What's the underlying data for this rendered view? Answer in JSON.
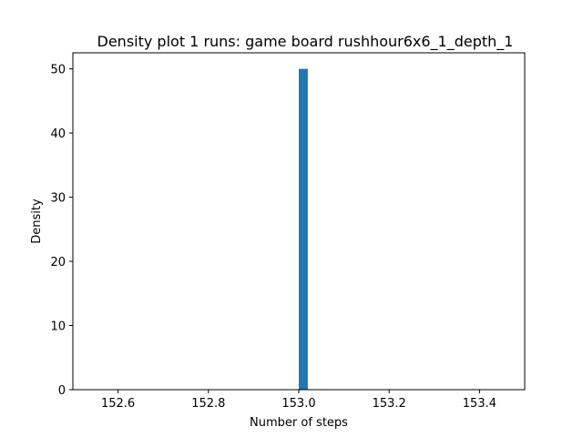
{
  "chart_data": {
    "type": "bar",
    "title": "Density plot 1 runs: game board rushhour6x6_1_depth_1",
    "xlabel": "Number of steps",
    "ylabel": "Density",
    "xlim": [
      152.5,
      153.5
    ],
    "ylim": [
      0,
      52.5
    ],
    "xticks": [
      "152.6",
      "152.8",
      "153.0",
      "153.2",
      "153.4"
    ],
    "xtick_values": [
      152.6,
      152.8,
      153.0,
      153.2,
      153.4
    ],
    "yticks": [
      "0",
      "10",
      "20",
      "30",
      "40",
      "50"
    ],
    "ytick_values": [
      0,
      10,
      20,
      30,
      40,
      50
    ],
    "bars": [
      {
        "x_start": 153.0,
        "x_end": 153.02,
        "value": 50
      }
    ],
    "bar_color": "#1f77b4",
    "grid": false,
    "legend": "none"
  }
}
